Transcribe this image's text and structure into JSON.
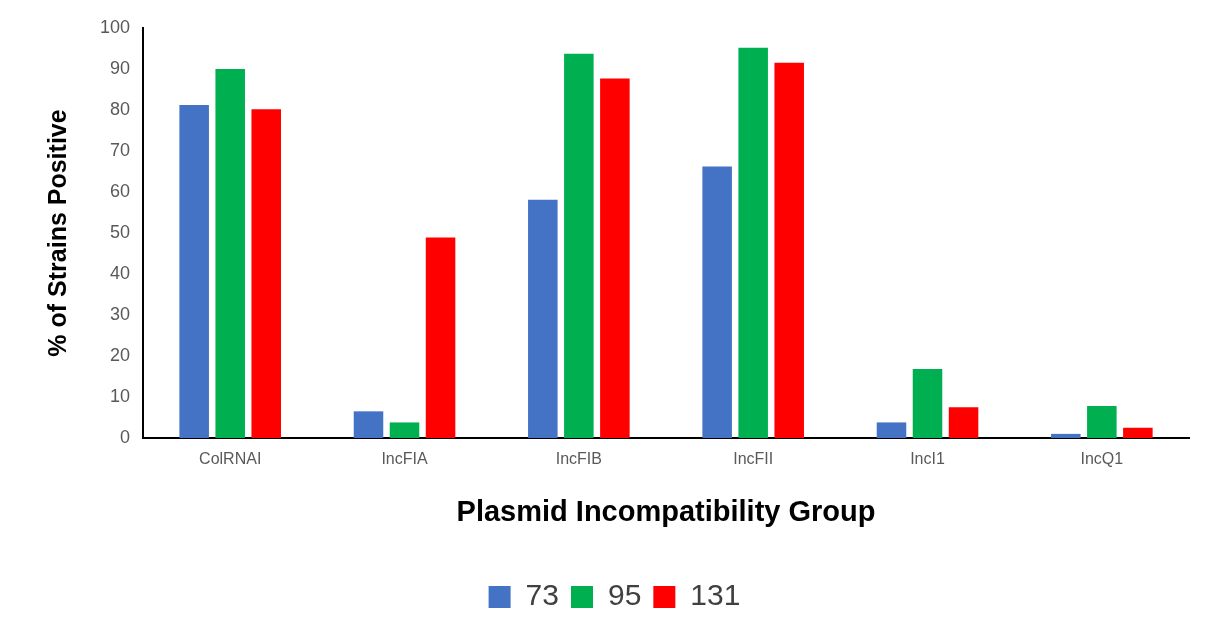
{
  "chart_data": {
    "type": "bar",
    "xlabel": "Plasmid Incompatibility Group",
    "ylabel": "% of Strains Positive",
    "categories": [
      "ColRNAI",
      "IncFIA",
      "IncFIB",
      "IncFII",
      "IncI1",
      "IncQ1"
    ],
    "series": [
      {
        "name": "73",
        "color": "#4472c4",
        "values": [
          81.2,
          6.5,
          58.1,
          66.2,
          3.8,
          1
        ]
      },
      {
        "name": "95",
        "color": "#00b050",
        "values": [
          90,
          3.8,
          93.7,
          95.2,
          16.8,
          7.8
        ]
      },
      {
        "name": "131",
        "color": "#ff0000",
        "values": [
          80.2,
          48.9,
          87.7,
          91.5,
          7.5,
          2.5
        ]
      }
    ],
    "ylim": [
      0,
      100
    ],
    "yticks": [
      0,
      10,
      20,
      30,
      40,
      50,
      60,
      70,
      80,
      90,
      100
    ],
    "grid": false,
    "legend": "bottom"
  }
}
